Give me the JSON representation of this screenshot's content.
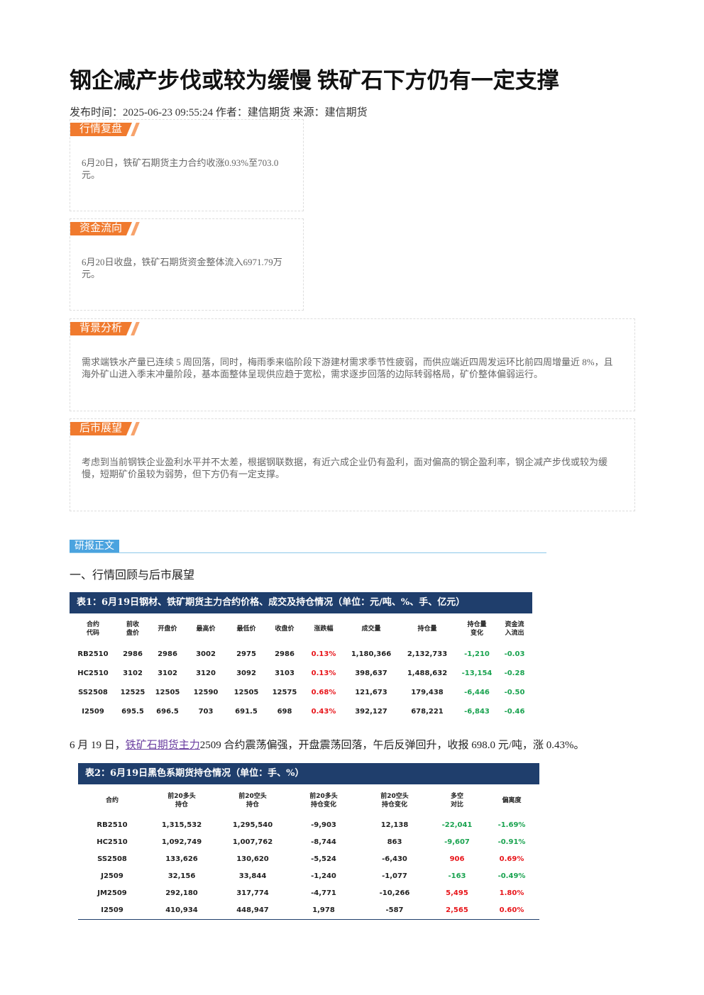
{
  "title": "钢企减产步伐或较为缓慢 铁矿石下方仍有一定支撑",
  "meta": "发布时间：2025-06-23 09:55:24 作者：建信期货 来源：建信期货",
  "sections": [
    {
      "label": "行情复盘",
      "text": "6月20日，铁矿石期货主力合约收涨0.93%至703.0元。"
    },
    {
      "label": "资金流向",
      "text": "6月20日收盘，铁矿石期货资金整体流入6971.79万元。"
    },
    {
      "label": "背景分析",
      "text": "需求端铁水产量已连续 5 周回落，同时，梅雨季来临阶段下游建材需求季节性疲弱，而供应端近四周发运环比前四周增量近 8%，且海外矿山进入季末冲量阶段，基本面整体呈现供应趋于宽松，需求逐步回落的边际转弱格局，矿价整体偏弱运行。"
    },
    {
      "label": "后市展望",
      "text": "考虑到当前钢铁企业盈利水平并不太差，根据钢联数据，有近六成企业仍有盈利，面对偏高的钢企盈利率，钢企减产步伐或较为缓慢，短期矿价虽较为弱势，但下方仍有一定支撑。"
    }
  ],
  "body_label": "研报正文",
  "heading": "一、行情回顾与后市展望",
  "table1": {
    "caption": "表1：6月19日钢材、铁矿期货主力合约价格、成交及持仓情况（单位：元/吨、%、手、亿元）",
    "header": [
      "合约\n代码",
      "前收\n盘价",
      "开盘价",
      "最高价",
      "最低价",
      "收盘价",
      "涨跌幅",
      "成交量",
      "持仓量",
      "持仓量\n变化",
      "资金流\n入流出"
    ],
    "rows": [
      [
        "RB2510",
        "2986",
        "2986",
        "3002",
        "2975",
        "2986",
        "0.13%",
        "1,180,366",
        "2,132,733",
        "-1,210",
        "-0.03"
      ],
      [
        "HC2510",
        "3102",
        "3102",
        "3120",
        "3092",
        "3103",
        "0.13%",
        "398,637",
        "1,488,632",
        "-13,154",
        "-0.28"
      ],
      [
        "SS2508",
        "12525",
        "12505",
        "12590",
        "12505",
        "12575",
        "0.68%",
        "121,673",
        "179,438",
        "-6,446",
        "-0.50"
      ],
      [
        "I2509",
        "695.5",
        "696.5",
        "703",
        "691.5",
        "698",
        "0.43%",
        "392,127",
        "678,221",
        "-6,843",
        "-0.46"
      ]
    ]
  },
  "paragraph": {
    "before": "6 月 19 日，",
    "link": "铁矿石期货主力",
    "after": "2509 合约震荡偏强，开盘震荡回落，午后反弹回升，收报 698.0 元/吨，涨 0.43%。"
  },
  "table2": {
    "caption": "表2：6月19日黑色系期货持仓情况（单位：手、%）",
    "header": [
      "合约",
      "前20多头\n持仓",
      "前20空头\n持仓",
      "前20多头\n持仓变化",
      "前20空头\n持仓变化",
      "多空\n对比",
      "偏离度"
    ],
    "rows": [
      [
        "RB2510",
        "1,315,532",
        "1,295,540",
        "-9,903",
        "12,138",
        "-22,041",
        "-1.69%"
      ],
      [
        "HC2510",
        "1,092,749",
        "1,007,762",
        "-8,744",
        "863",
        "-9,607",
        "-0.91%"
      ],
      [
        "SS2508",
        "133,626",
        "130,620",
        "-5,524",
        "-6,430",
        "906",
        "0.69%"
      ],
      [
        "J2509",
        "32,156",
        "33,844",
        "-1,240",
        "-1,077",
        "-163",
        "-0.49%"
      ],
      [
        "JM2509",
        "292,180",
        "317,774",
        "-4,771",
        "-10,266",
        "5,495",
        "1.80%"
      ],
      [
        "I2509",
        "410,934",
        "448,947",
        "1,978",
        "-587",
        "2,565",
        "0.60%"
      ]
    ]
  }
}
